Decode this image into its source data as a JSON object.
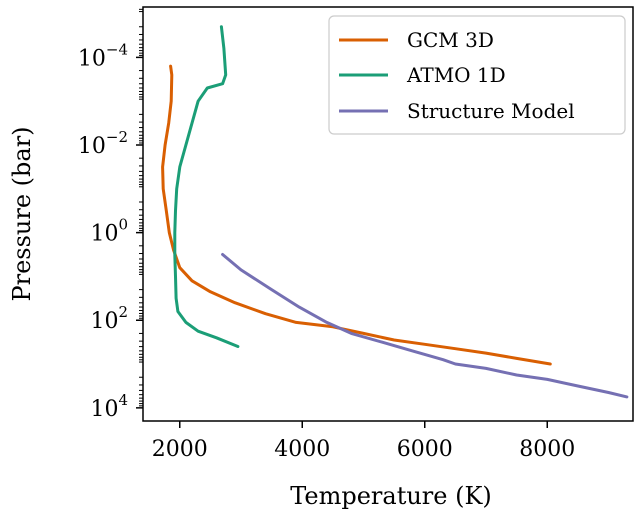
{
  "chart_data": {
    "type": "line",
    "xlabel": "Temperature (K)",
    "ylabel": "Pressure (bar)",
    "xlim": [
      1400,
      9400
    ],
    "ylim_log10": [
      -5.15,
      4.3
    ],
    "y_scale": "log",
    "y_inverted": true,
    "grid": false,
    "legend_position": "top-right",
    "x_ticks": [
      {
        "value": 2000,
        "label": "2000"
      },
      {
        "value": 4000,
        "label": "4000"
      },
      {
        "value": 6000,
        "label": "6000"
      },
      {
        "value": 8000,
        "label": "8000"
      }
    ],
    "y_ticks": [
      {
        "exp": -4,
        "base": "10",
        "sup": "−4"
      },
      {
        "exp": -2,
        "base": "10",
        "sup": "−2"
      },
      {
        "exp": 0,
        "base": "10",
        "sup": "0"
      },
      {
        "exp": 2,
        "base": "10",
        "sup": "2"
      },
      {
        "exp": 4,
        "base": "10",
        "sup": "4"
      }
    ],
    "series": [
      {
        "name": "GCM 3D",
        "color": "#d95f02",
        "points": [
          [
            1850,
            -3.8
          ],
          [
            1870,
            -3.6
          ],
          [
            1860,
            -3.0
          ],
          [
            1820,
            -2.5
          ],
          [
            1760,
            -2.0
          ],
          [
            1720,
            -1.5
          ],
          [
            1730,
            -1.0
          ],
          [
            1780,
            -0.5
          ],
          [
            1830,
            0.0
          ],
          [
            1900,
            0.4
          ],
          [
            2000,
            0.8
          ],
          [
            2200,
            1.1
          ],
          [
            2500,
            1.35
          ],
          [
            2900,
            1.6
          ],
          [
            3400,
            1.85
          ],
          [
            3900,
            2.05
          ],
          [
            4500,
            2.15
          ],
          [
            5000,
            2.3
          ],
          [
            5500,
            2.45
          ],
          [
            6000,
            2.55
          ],
          [
            6500,
            2.65
          ],
          [
            7000,
            2.75
          ],
          [
            7500,
            2.87
          ],
          [
            8050,
            3.0
          ]
        ]
      },
      {
        "name": "ATMO 1D",
        "color": "#1b9e77",
        "points": [
          [
            2680,
            -4.7
          ],
          [
            2720,
            -4.2
          ],
          [
            2750,
            -3.6
          ],
          [
            2700,
            -3.4
          ],
          [
            2450,
            -3.3
          ],
          [
            2300,
            -3.0
          ],
          [
            2200,
            -2.5
          ],
          [
            2100,
            -2.0
          ],
          [
            2000,
            -1.5
          ],
          [
            1950,
            -1.0
          ],
          [
            1930,
            -0.5
          ],
          [
            1920,
            0.0
          ],
          [
            1920,
            0.5
          ],
          [
            1930,
            1.0
          ],
          [
            1940,
            1.5
          ],
          [
            1970,
            1.8
          ],
          [
            2100,
            2.05
          ],
          [
            2300,
            2.25
          ],
          [
            2600,
            2.4
          ],
          [
            2950,
            2.6
          ]
        ]
      },
      {
        "name": "Structure Model",
        "color": "#7570b3",
        "points": [
          [
            2700,
            0.5
          ],
          [
            3000,
            0.85
          ],
          [
            3500,
            1.3
          ],
          [
            3950,
            1.7
          ],
          [
            4400,
            2.05
          ],
          [
            4800,
            2.3
          ],
          [
            5300,
            2.5
          ],
          [
            5800,
            2.7
          ],
          [
            6300,
            2.9
          ],
          [
            6500,
            3.0
          ],
          [
            7000,
            3.1
          ],
          [
            7500,
            3.25
          ],
          [
            8000,
            3.35
          ],
          [
            8500,
            3.5
          ],
          [
            9000,
            3.65
          ],
          [
            9300,
            3.75
          ]
        ]
      }
    ]
  }
}
